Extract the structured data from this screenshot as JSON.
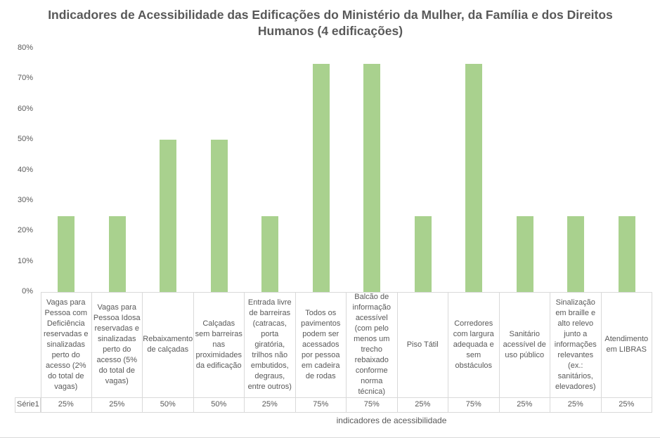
{
  "chart_data": {
    "type": "bar",
    "title": "Indicadores de Acessibilidade das Edificações do Ministério da Mulher, da Família e dos Direitos Humanos (4 edificações)",
    "xlabel": "indicadores de acessibilidade",
    "ylabel": "",
    "ylim": [
      0,
      80
    ],
    "yticks": [
      "0%",
      "10%",
      "20%",
      "30%",
      "40%",
      "50%",
      "60%",
      "70%",
      "80%"
    ],
    "grid": false,
    "legend": "data table",
    "bar_color": "#a9d18e",
    "categories": [
      "Vagas para Pessoa com Deficiência reservadas e sinalizadas perto do acesso (2% do total de vagas)",
      "Vagas para Pessoa Idosa reservadas e sinalizadas perto do acesso (5% do total de vagas)",
      "Rebaixamento de calçadas",
      "Calçadas sem barreiras nas proximidades da edificação",
      "Entrada livre de barreiras (catracas, porta giratória, trilhos não embutidos, degraus, entre outros)",
      "Todos os pavimentos podem ser acessados por pessoa em cadeira de rodas",
      "Balcão de informação acessível (com pelo menos um trecho rebaixado conforme norma técnica)",
      "Piso Tátil",
      "Corredores com largura adequada e sem obstáculos",
      "Sanitário acessível de uso público",
      "Sinalização em braille e alto relevo junto a informações relevantes (ex.: sanitários, elevadores)",
      "Atendimento em LIBRAS"
    ],
    "series": [
      {
        "name": "Série1",
        "values": [
          25,
          25,
          50,
          50,
          25,
          75,
          75,
          25,
          75,
          25,
          25,
          25
        ],
        "labels": [
          "25%",
          "25%",
          "50%",
          "50%",
          "25%",
          "75%",
          "75%",
          "25%",
          "75%",
          "25%",
          "25%",
          "25%"
        ]
      }
    ]
  }
}
